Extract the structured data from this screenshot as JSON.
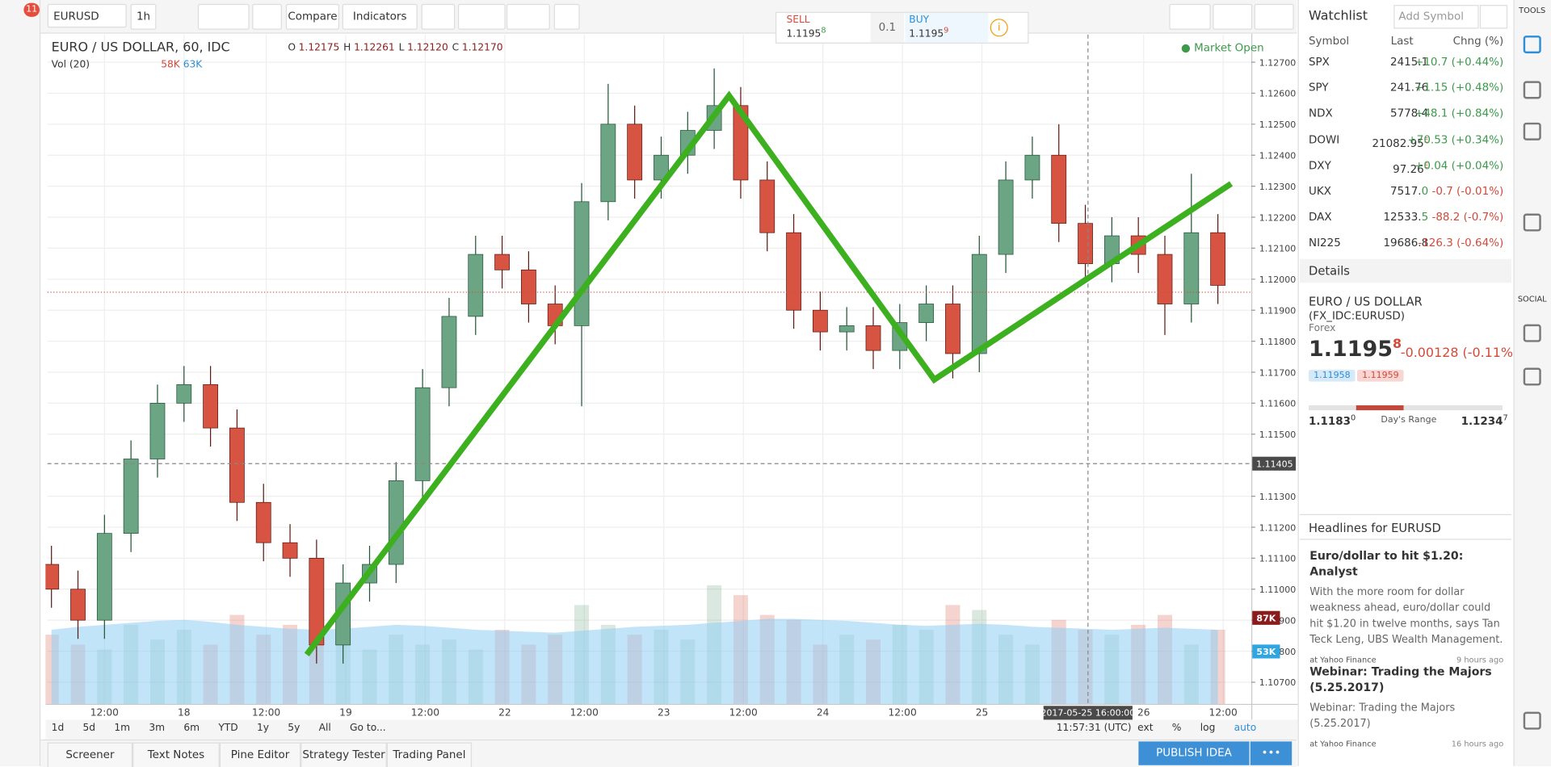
{
  "toolbar": {
    "notifications": "11",
    "symbol": "EURUSD",
    "interval": "1h",
    "compare": "Compare",
    "indicators": "Indicators"
  },
  "trade": {
    "sell_label": "SELL",
    "sell_price": "1.1195",
    "sell_sup": "8",
    "spread": "0.1",
    "buy_label": "BUY",
    "buy_price": "1.1195",
    "buy_sup": "9"
  },
  "chart": {
    "legend": "EURO / US DOLLAR, 60, IDC",
    "ohlc": [
      {
        "label": "O",
        "value": "1.12175"
      },
      {
        "label": "H",
        "value": "1.12261"
      },
      {
        "label": "L",
        "value": "1.12120"
      },
      {
        "label": "C",
        "value": "1.12170"
      }
    ],
    "volume_legend": "Vol (20)",
    "volume_a": "58K",
    "volume_b": "63K",
    "status": "Market Open",
    "up_color": "#6ba583",
    "down_color": "#d75442",
    "pattern_color": "#3cb01e",
    "volume_ma_color": "#8fcdf4",
    "xlim": [
      -0.15,
      45.26
    ],
    "ylim": [
      1.1063,
      1.12789
    ],
    "yticks": [
      {
        "value": 1.127,
        "label": "1.12700"
      },
      {
        "value": 1.126,
        "label": "1.12600"
      },
      {
        "value": 1.125,
        "label": "1.12500"
      },
      {
        "value": 1.124,
        "label": "1.12400"
      },
      {
        "value": 1.123,
        "label": "1.12300"
      },
      {
        "value": 1.122,
        "label": "1.12200"
      },
      {
        "value": 1.121,
        "label": "1.12100"
      },
      {
        "value": 1.12,
        "label": "1.12000"
      },
      {
        "value": 1.119,
        "label": "1.11900"
      },
      {
        "value": 1.118,
        "label": "1.11800"
      },
      {
        "value": 1.117,
        "label": "1.11700"
      },
      {
        "value": 1.116,
        "label": "1.11600"
      },
      {
        "value": 1.115,
        "label": "1.11500"
      },
      {
        "value": 1.113,
        "label": "1.11300"
      },
      {
        "value": 1.112,
        "label": "1.11200"
      },
      {
        "value": 1.111,
        "label": "1.11100"
      },
      {
        "value": 1.11,
        "label": "1.11000"
      },
      {
        "value": 1.109,
        "label": "1.10900"
      },
      {
        "value": 1.108,
        "label": "1.10800"
      },
      {
        "value": 1.107,
        "label": "1.10700"
      }
    ],
    "xticks": [
      {
        "value": 2.0,
        "label": "12:00"
      },
      {
        "value": 5.0,
        "label": "18"
      },
      {
        "value": 8.1,
        "label": "12:00"
      },
      {
        "value": 11.1,
        "label": "19"
      },
      {
        "value": 14.1,
        "label": "12:00"
      },
      {
        "value": 17.1,
        "label": "22"
      },
      {
        "value": 20.1,
        "label": "12:00"
      },
      {
        "value": 23.1,
        "label": "23"
      },
      {
        "value": 26.1,
        "label": "12:00"
      },
      {
        "value": 29.1,
        "label": "24"
      },
      {
        "value": 32.1,
        "label": "12:00"
      },
      {
        "value": 35.1,
        "label": "25"
      },
      {
        "value": 41.2,
        "label": "26"
      },
      {
        "value": 44.2,
        "label": "12:00"
      }
    ],
    "open": [
      1.1108,
      1.11,
      1.109,
      1.1118,
      1.1142,
      1.116,
      1.1166,
      1.1152,
      1.1128,
      1.1115,
      1.111,
      1.1082,
      1.1102,
      1.1108,
      1.1135,
      1.1165,
      1.1188,
      1.1208,
      1.1203,
      1.1192,
      1.1185,
      1.1225,
      1.125,
      1.1232,
      1.124,
      1.1248,
      1.1256,
      1.1232,
      1.1215,
      1.119,
      1.1183,
      1.1185,
      1.1177,
      1.1186,
      1.1192,
      1.1176,
      1.1208,
      1.1232,
      1.124,
      1.1218,
      1.1205,
      1.1214,
      1.1208,
      1.1192,
      1.1215
    ],
    "high": [
      1.1114,
      1.1106,
      1.1124,
      1.1148,
      1.1166,
      1.1172,
      1.1172,
      1.1158,
      1.1134,
      1.1121,
      1.1116,
      1.1108,
      1.1114,
      1.1141,
      1.1171,
      1.1194,
      1.1214,
      1.1214,
      1.1209,
      1.1198,
      1.1231,
      1.1263,
      1.1256,
      1.1246,
      1.1254,
      1.1268,
      1.1262,
      1.1238,
      1.1221,
      1.1196,
      1.1191,
      1.1191,
      1.1192,
      1.1198,
      1.1198,
      1.1214,
      1.1238,
      1.1246,
      1.125,
      1.1224,
      1.122,
      1.122,
      1.1214,
      1.1234,
      1.1221
    ],
    "low": [
      1.1094,
      1.1084,
      1.1084,
      1.1112,
      1.1136,
      1.1154,
      1.1146,
      1.1122,
      1.1109,
      1.1104,
      1.1076,
      1.1076,
      1.1096,
      1.1102,
      1.1129,
      1.1159,
      1.1182,
      1.1197,
      1.1186,
      1.1179,
      1.1159,
      1.1219,
      1.1226,
      1.1226,
      1.1234,
      1.1242,
      1.1226,
      1.1209,
      1.1184,
      1.1177,
      1.1177,
      1.1171,
      1.1171,
      1.118,
      1.1168,
      1.117,
      1.1202,
      1.1226,
      1.1212,
      1.1199,
      1.1199,
      1.1202,
      1.1182,
      1.1186,
      1.1192
    ],
    "close": [
      1.11,
      1.109,
      1.1118,
      1.1142,
      1.116,
      1.1166,
      1.1152,
      1.1128,
      1.1115,
      1.111,
      1.1082,
      1.1102,
      1.1108,
      1.1135,
      1.1165,
      1.1188,
      1.1208,
      1.1203,
      1.1192,
      1.1185,
      1.1225,
      1.125,
      1.1232,
      1.124,
      1.1248,
      1.1256,
      1.1232,
      1.1215,
      1.119,
      1.1183,
      1.1185,
      1.1177,
      1.1186,
      1.1192,
      1.1176,
      1.1208,
      1.1232,
      1.124,
      1.1218,
      1.1205,
      1.1214,
      1.1208,
      1.1192,
      1.1215,
      1.1198
    ],
    "volume_ylim": [
      0,
      677
    ],
    "volume": [
      70,
      60,
      55,
      80,
      65,
      75,
      60,
      90,
      70,
      80,
      85,
      60,
      55,
      70,
      60,
      65,
      55,
      75,
      60,
      70,
      100,
      80,
      70,
      75,
      65,
      120,
      110,
      90,
      85,
      60,
      70,
      65,
      80,
      75,
      100,
      95,
      70,
      60,
      85,
      75,
      70,
      80,
      90,
      60,
      75
    ],
    "volume_ma": [
      75,
      78,
      80,
      82,
      84,
      85,
      83,
      80,
      78,
      76,
      75,
      76,
      78,
      80,
      79,
      77,
      75,
      74,
      73,
      72,
      74,
      76,
      78,
      79,
      80,
      82,
      84,
      86,
      86,
      85,
      84,
      82,
      80,
      79,
      80,
      81,
      80,
      78,
      77,
      76,
      75,
      76,
      77,
      76,
      75
    ],
    "volume_badges": [
      {
        "value": 87,
        "label": "87K",
        "color": "#8b1c1c"
      },
      {
        "value": 53,
        "label": "53K",
        "color": "#2fa6e0"
      }
    ],
    "last_price": 1.11958,
    "crosshair_price": {
      "value": 1.11405,
      "label": "1.11405"
    },
    "crosshair_time": {
      "value": 39.1,
      "label": "2017-05-25 16:00:00"
    },
    "pattern": {
      "x": [
        9.63,
        25.56,
        33.3,
        44.5
      ],
      "y": [
        1.10789,
        1.12592,
        1.11676,
        1.12308
      ]
    }
  },
  "bottom": {
    "ranges": [
      "1d",
      "5d",
      "1m",
      "3m",
      "6m",
      "YTD",
      "1y",
      "5y",
      "All",
      "Go to..."
    ],
    "clock": "11:57:31 (UTC)",
    "options": [
      "ext",
      "%",
      "log",
      "auto"
    ],
    "tabs": [
      "Screener",
      "Text Notes",
      "Pine Editor",
      "Strategy Tester",
      "Trading Panel"
    ],
    "publish": "PUBLISH IDEA"
  },
  "watchlist": {
    "title": "Watchlist",
    "add": "Add Symbol",
    "headers": [
      "Symbol",
      "Last",
      "Chng (%)"
    ],
    "rows": [
      {
        "symbol": "SPX",
        "last": "2415.1",
        "change": "+10.7 (+0.44%)",
        "color": "#3c9a4a"
      },
      {
        "symbol": "SPY",
        "last": "241.76",
        "change": "+1.15 (+0.48%)",
        "color": "#3c9a4a"
      },
      {
        "symbol": "NDX",
        "last": "5778.4",
        "change": "+48.1 (+0.84%)",
        "color": "#3c9a4a"
      },
      {
        "symbol": "DOWI",
        "last": "21082.95",
        "sup": "E",
        "change": "+70.53 (+0.34%)",
        "color": "#3c9a4a"
      },
      {
        "symbol": "DXY",
        "last": "97.26",
        "sup": "E",
        "change": "+0.04 (+0.04%)",
        "color": "#3c9a4a"
      },
      {
        "symbol": "UKX",
        "last": "7517.",
        "tail": "0",
        "change": "-0.7 (-0.01%)",
        "color": "#d24a3a"
      },
      {
        "symbol": "DAX",
        "last": "12533.",
        "tail": "5",
        "change": "-88.2 (-0.7%)",
        "color": "#d24a3a"
      },
      {
        "symbol": "NI225",
        "last": "19686.8",
        "change": "-126.3 (-0.64%)",
        "color": "#d24a3a"
      }
    ]
  },
  "details": {
    "title": "Details",
    "name": "EURO / US DOLLAR",
    "code": "(FX_IDC:EURUSD)",
    "kind": "Forex",
    "price": "1.1195",
    "price_sup": "8",
    "change": "-0.00128 (-0.11%)",
    "bid": "1.11958",
    "ask": "1.11959",
    "low": "1.1183",
    "low_sup": "0",
    "range": "Day's Range",
    "high": "1.1234",
    "high_sup": "7"
  },
  "headlines": {
    "title": "Headlines for EURUSD",
    "items": [
      {
        "title": "Euro/dollar to hit $1.20: Analyst",
        "body": "With the more room for dollar weakness ahead, euro/dollar could hit $1.20 in twelve months, says Tan Teck Leng, UBS Wealth Management.",
        "source": "at Yahoo Finance",
        "time": "9 hours ago"
      },
      {
        "title": "Webinar: Trading the Majors (5.25.2017)",
        "body": "Webinar: Trading the Majors (5.25.2017)",
        "source": "at Yahoo Finance",
        "time": "16 hours ago"
      }
    ]
  },
  "sidebar": {
    "tools": "TOOLS",
    "social": "SOCIAL"
  }
}
